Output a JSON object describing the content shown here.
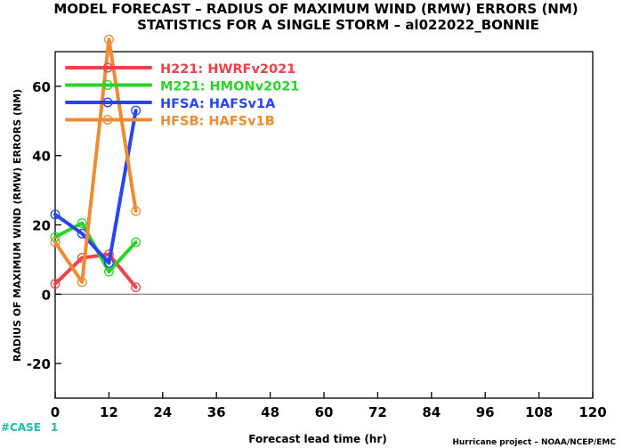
{
  "title_line1": "MODEL FORECAST – RADIUS OF MAXIMUM WIND (RMW) ERRORS (NM)",
  "title_line2": "STATISTICS FOR A SINGLE STORM – al022022_BONNIE",
  "case_label": "#CASE",
  "case_count": "1",
  "credit": "Hurricane project – NOAA/NCEP/EMC",
  "chart_data": {
    "type": "line",
    "xlabel": "Forecast lead time (hr)",
    "ylabel": "RADIUS OF MAXIMUM WIND (RMW) ERRORS (NM)",
    "xlim": [
      0,
      120
    ],
    "ylim": [
      -30,
      70
    ],
    "x_ticks": [
      0,
      12,
      24,
      36,
      48,
      60,
      72,
      84,
      96,
      108,
      120
    ],
    "y_ticks": [
      -20,
      0,
      20,
      40,
      60
    ],
    "x_tick_labels": [
      "0",
      "12",
      "24",
      "36",
      "48",
      "60",
      "72",
      "84",
      "96",
      "108",
      "120"
    ],
    "y_tick_labels": [
      "-20",
      "0",
      "20",
      "40",
      "60"
    ],
    "legend_position": "top-left",
    "series": [
      {
        "name": "H221:  HWRFv2021",
        "color": "#f0424a",
        "x": [
          0,
          6,
          12,
          18
        ],
        "y": [
          3,
          10.5,
          11.5,
          2
        ]
      },
      {
        "name": "M221:  HMONv2021",
        "color": "#2bd22b",
        "x": [
          0,
          6,
          12,
          18
        ],
        "y": [
          16.5,
          20.5,
          6.5,
          15
        ]
      },
      {
        "name": "HFSA:  HAFSv1A",
        "color": "#2745f2",
        "x": [
          0,
          6,
          12,
          18
        ],
        "y": [
          23,
          17.5,
          9,
          53
        ]
      },
      {
        "name": "HFSB:  HAFSv1B",
        "color": "#ee8b33",
        "x": [
          0,
          6,
          12,
          18
        ],
        "y": [
          15,
          3.5,
          73.5,
          24
        ]
      }
    ]
  }
}
